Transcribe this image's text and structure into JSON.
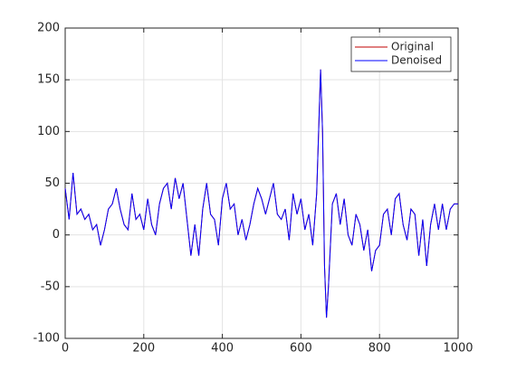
{
  "chart_data": {
    "type": "line",
    "x": [
      0,
      10,
      20,
      30,
      40,
      50,
      60,
      70,
      80,
      90,
      100,
      110,
      120,
      130,
      140,
      150,
      160,
      170,
      180,
      190,
      200,
      210,
      220,
      230,
      240,
      250,
      260,
      270,
      280,
      290,
      300,
      310,
      320,
      330,
      340,
      350,
      360,
      370,
      380,
      390,
      400,
      410,
      420,
      430,
      440,
      450,
      460,
      470,
      480,
      490,
      500,
      510,
      520,
      530,
      540,
      550,
      560,
      570,
      580,
      590,
      600,
      610,
      620,
      630,
      640,
      645,
      650,
      655,
      660,
      665,
      670,
      680,
      690,
      700,
      710,
      720,
      730,
      740,
      750,
      760,
      770,
      780,
      790,
      800,
      810,
      820,
      830,
      840,
      850,
      860,
      870,
      880,
      890,
      900,
      910,
      920,
      930,
      940,
      950,
      960,
      970,
      980,
      990,
      1000
    ],
    "series": [
      {
        "name": "Original",
        "color": "#c00000",
        "values": [
          45,
          15,
          60,
          20,
          25,
          15,
          20,
          5,
          10,
          -10,
          5,
          25,
          30,
          45,
          25,
          10,
          5,
          40,
          15,
          20,
          5,
          35,
          10,
          0,
          30,
          45,
          50,
          25,
          55,
          35,
          50,
          15,
          -20,
          10,
          -20,
          25,
          50,
          20,
          15,
          -10,
          35,
          50,
          25,
          30,
          0,
          15,
          -5,
          10,
          30,
          45,
          35,
          20,
          35,
          50,
          20,
          15,
          25,
          -5,
          40,
          20,
          35,
          5,
          20,
          -10,
          40,
          100,
          160,
          100,
          -30,
          -80,
          -50,
          30,
          40,
          10,
          35,
          0,
          -10,
          20,
          10,
          -15,
          5,
          -35,
          -15,
          -10,
          20,
          25,
          0,
          35,
          40,
          10,
          -5,
          25,
          20,
          -20,
          15,
          -30,
          10,
          30,
          5,
          30,
          5,
          25,
          30,
          30
        ]
      },
      {
        "name": "Denoised",
        "color": "#0000ff",
        "values": [
          45,
          15,
          60,
          20,
          25,
          15,
          20,
          5,
          10,
          -10,
          5,
          25,
          30,
          45,
          25,
          10,
          5,
          40,
          15,
          20,
          5,
          35,
          10,
          0,
          30,
          45,
          50,
          25,
          55,
          35,
          50,
          15,
          -20,
          10,
          -20,
          25,
          50,
          20,
          15,
          -10,
          35,
          50,
          25,
          30,
          0,
          15,
          -5,
          10,
          30,
          45,
          35,
          20,
          35,
          50,
          20,
          15,
          25,
          -5,
          40,
          20,
          35,
          5,
          20,
          -10,
          40,
          100,
          160,
          100,
          -30,
          -80,
          -50,
          30,
          40,
          10,
          35,
          0,
          -10,
          20,
          10,
          -15,
          5,
          -35,
          -15,
          -10,
          20,
          25,
          0,
          35,
          40,
          10,
          -5,
          25,
          20,
          -20,
          15,
          -30,
          10,
          30,
          5,
          30,
          5,
          25,
          30,
          30
        ]
      }
    ],
    "xlim": [
      0,
      1000
    ],
    "xticks": [
      0,
      200,
      400,
      600,
      800,
      1000
    ],
    "ylim": [
      -100,
      200
    ],
    "yticks": [
      -100,
      -50,
      0,
      50,
      100,
      150,
      200
    ],
    "grid": true,
    "legend": "northeast"
  }
}
